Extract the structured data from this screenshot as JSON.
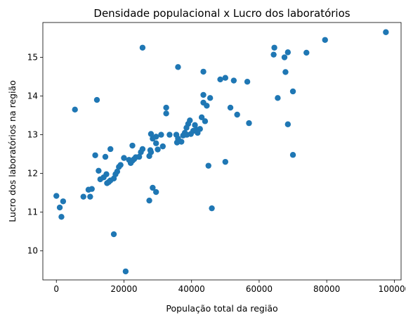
{
  "chart_data": {
    "type": "scatter",
    "title": "Densidade populacional x Lucro dos laboratórios",
    "xlabel": "População total da região",
    "ylabel": "Lucro dos laboratórios na região",
    "xlim": [
      -4000,
      102000
    ],
    "ylim": [
      9.25,
      15.9
    ],
    "xticks": [
      0,
      20000,
      40000,
      60000,
      80000,
      100000
    ],
    "yticks": [
      10,
      11,
      12,
      13,
      14,
      15
    ],
    "grid": false,
    "marker_color": "#1f77b4",
    "points": [
      [
        97500,
        15.65
      ],
      [
        79500,
        15.45
      ],
      [
        74000,
        15.12
      ],
      [
        68500,
        15.13
      ],
      [
        64500,
        15.25
      ],
      [
        64300,
        15.07
      ],
      [
        67500,
        15.0
      ],
      [
        67800,
        14.62
      ],
      [
        70000,
        14.12
      ],
      [
        65500,
        13.95
      ],
      [
        68500,
        13.27
      ],
      [
        70000,
        12.48
      ],
      [
        56500,
        14.37
      ],
      [
        52500,
        14.4
      ],
      [
        50000,
        14.47
      ],
      [
        48500,
        14.43
      ],
      [
        43500,
        14.63
      ],
      [
        43500,
        14.03
      ],
      [
        43500,
        13.83
      ],
      [
        45500,
        13.95
      ],
      [
        51500,
        13.7
      ],
      [
        53500,
        13.52
      ],
      [
        57000,
        13.3
      ],
      [
        44000,
        13.35
      ],
      [
        43000,
        13.45
      ],
      [
        44500,
        13.75
      ],
      [
        41000,
        13.25
      ],
      [
        41500,
        13.13
      ],
      [
        39500,
        13.37
      ],
      [
        39000,
        13.28
      ],
      [
        38500,
        13.18
      ],
      [
        38000,
        13.05
      ],
      [
        37500,
        12.98
      ],
      [
        37000,
        12.82
      ],
      [
        39800,
        13.02
      ],
      [
        40500,
        13.1
      ],
      [
        38600,
        13.0
      ],
      [
        35500,
        13.0
      ],
      [
        36000,
        12.9
      ],
      [
        35700,
        12.8
      ],
      [
        32500,
        13.7
      ],
      [
        32500,
        13.55
      ],
      [
        33500,
        13.0
      ],
      [
        31000,
        13.0
      ],
      [
        29500,
        12.95
      ],
      [
        28000,
        13.02
      ],
      [
        28500,
        12.9
      ],
      [
        29500,
        12.78
      ],
      [
        30000,
        12.62
      ],
      [
        31500,
        12.7
      ],
      [
        28000,
        12.55
      ],
      [
        27500,
        12.45
      ],
      [
        27800,
        12.6
      ],
      [
        25500,
        12.63
      ],
      [
        25000,
        12.55
      ],
      [
        24500,
        12.43
      ],
      [
        23500,
        12.42
      ],
      [
        23000,
        12.37
      ],
      [
        22500,
        12.33
      ],
      [
        22000,
        12.27
      ],
      [
        21500,
        12.35
      ],
      [
        22500,
        12.72
      ],
      [
        20000,
        12.4
      ],
      [
        19000,
        12.22
      ],
      [
        18500,
        12.17
      ],
      [
        18000,
        12.05
      ],
      [
        17500,
        11.98
      ],
      [
        17000,
        11.87
      ],
      [
        16000,
        11.82
      ],
      [
        15500,
        11.78
      ],
      [
        15000,
        11.75
      ],
      [
        14800,
        11.98
      ],
      [
        14000,
        11.9
      ],
      [
        13000,
        11.85
      ],
      [
        12500,
        12.07
      ],
      [
        14500,
        12.43
      ],
      [
        16000,
        12.63
      ],
      [
        11500,
        12.47
      ],
      [
        12000,
        13.9
      ],
      [
        5500,
        13.65
      ],
      [
        10500,
        11.6
      ],
      [
        9500,
        11.58
      ],
      [
        10000,
        11.4
      ],
      [
        8000,
        11.4
      ],
      [
        0,
        11.42
      ],
      [
        2000,
        11.28
      ],
      [
        1000,
        11.12
      ],
      [
        1500,
        10.88
      ],
      [
        17000,
        10.43
      ],
      [
        20500,
        9.47
      ],
      [
        27500,
        11.3
      ],
      [
        28500,
        11.63
      ],
      [
        29500,
        11.52
      ],
      [
        25500,
        15.25
      ],
      [
        36000,
        14.75
      ],
      [
        45000,
        12.2
      ],
      [
        46000,
        11.1
      ],
      [
        50000,
        12.3
      ],
      [
        42500,
        13.15
      ],
      [
        41800,
        13.05
      ]
    ]
  }
}
